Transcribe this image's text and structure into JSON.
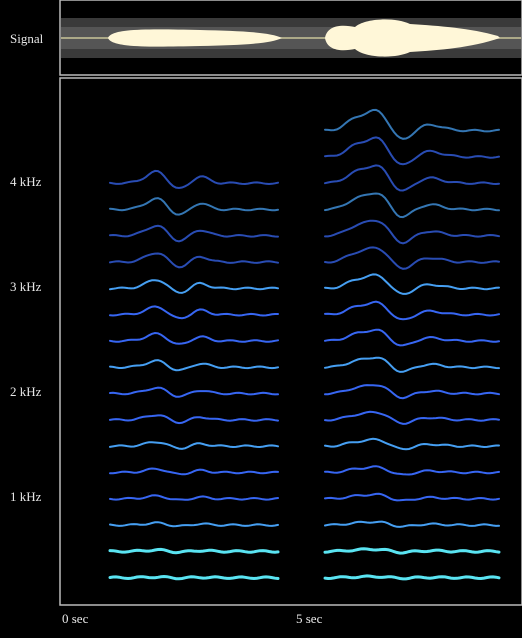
{
  "signal_label": "Signal",
  "frequency_labels": [
    "4 kHz",
    "3 kHz",
    "2 kHz",
    "1 kHz"
  ],
  "time_labels": [
    "0 sec",
    "5 sec"
  ]
}
